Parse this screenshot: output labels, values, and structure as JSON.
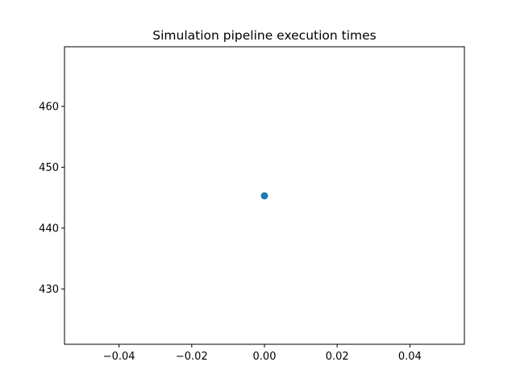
{
  "chart_data": {
    "type": "scatter",
    "title": "Simulation pipeline execution times",
    "xlabel": "",
    "ylabel": "",
    "series": [
      {
        "x": [
          0.0
        ],
        "y": [
          445.3
        ],
        "color": "#1f77b4"
      }
    ],
    "xlim": [
      -0.055,
      0.055
    ],
    "ylim": [
      420.9,
      469.8
    ],
    "xticks": [
      -0.04,
      -0.02,
      0.0,
      0.02,
      0.04
    ],
    "xtick_labels": [
      "−0.04",
      "−0.02",
      "0.00",
      "0.02",
      "0.04"
    ],
    "yticks": [
      430,
      440,
      450,
      460
    ],
    "ytick_labels": [
      "430",
      "440",
      "450",
      "460"
    ],
    "grid": false,
    "legend": "none"
  }
}
